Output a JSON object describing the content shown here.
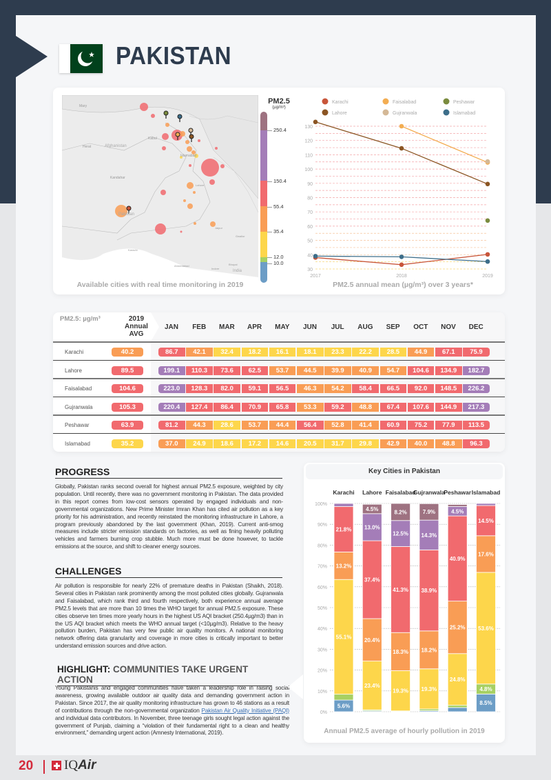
{
  "header": {
    "title": "PAKISTAN",
    "flag": "pakistan-flag"
  },
  "colors": {
    "good": "#6c9dc6",
    "moderate": "#a7d063",
    "usg_low": "#fdd64b",
    "usg": "#f99d55",
    "unhealthy": "#f16a6e",
    "very_unhealthy": "#a47db8",
    "hazardous": "#9e7281",
    "dark": "#2e3c4e",
    "accent": "#d42a3b"
  },
  "map": {
    "caption": "Available cities with real time monitoring in 2019",
    "labels": [
      "Mary",
      "Herat",
      "Afghanistan",
      "Kabul",
      "Kandahar",
      "Islamabad",
      "Pakistan",
      "Lahore",
      "Karachi",
      "Jaipur",
      "Gwalior",
      "Ahmedabad",
      "Indore",
      "Bhopal",
      "India"
    ],
    "legend": {
      "title": "PM2.5",
      "unit": "(µg/m³)",
      "ticks": [
        "250.4",
        "150.4",
        "55.4",
        "35.4",
        "12.0",
        "10.0"
      ]
    }
  },
  "chart_data": [
    {
      "type": "line",
      "title": "PM2.5 annual mean (µg/m³) over 3 years*",
      "x": [
        "2017",
        "2018",
        "2019"
      ],
      "ylim": [
        30,
        130
      ],
      "yticks": [
        "130",
        "120",
        "110",
        "100",
        "90",
        "80",
        "70",
        "60",
        "50",
        "40",
        "30"
      ],
      "legend": [
        "Karachi",
        "Lahore",
        "Faisalabad",
        "Gujranwala",
        "Peshawar",
        "Islamabad"
      ],
      "legend_position": "top",
      "series": [
        {
          "name": "Karachi",
          "color": "#c8553a",
          "values": [
            38,
            33,
            40.2
          ]
        },
        {
          "name": "Lahore",
          "color": "#8b5523",
          "values": [
            133,
            114.5,
            89.5
          ]
        },
        {
          "name": "Faisalabad",
          "color": "#f3ad52",
          "values": [
            null,
            130,
            104.6
          ]
        },
        {
          "name": "Gujranwala",
          "color": "#d4b896",
          "values": [
            null,
            null,
            105.3
          ]
        },
        {
          "name": "Peshawar",
          "color": "#7a8b3e",
          "values": [
            null,
            null,
            63.9
          ]
        },
        {
          "name": "Islamabad",
          "color": "#3d6e8a",
          "values": [
            39,
            38.5,
            35.2
          ]
        }
      ]
    },
    {
      "type": "table",
      "title": "PM2.5: µg/m³",
      "avg_header": [
        "2019",
        "Annual",
        "AVG"
      ],
      "months": [
        "JAN",
        "FEB",
        "MAR",
        "APR",
        "MAY",
        "JUN",
        "JUL",
        "AUG",
        "SEP",
        "OCT",
        "NOV",
        "DEC"
      ],
      "rows": [
        {
          "city": "Karachi",
          "avg": "40.2",
          "values": [
            "86.7",
            "42.1",
            "32.4",
            "18.2",
            "16.1",
            "18.1",
            "23.3",
            "22.2",
            "28.5",
            "44.9",
            "67.1",
            "75.9"
          ]
        },
        {
          "city": "Lahore",
          "avg": "89.5",
          "values": [
            "199.1",
            "110.3",
            "73.6",
            "62.5",
            "53.7",
            "44.5",
            "39.9",
            "40.9",
            "54.7",
            "104.6",
            "134.9",
            "182.7"
          ]
        },
        {
          "city": "Faisalabad",
          "avg": "104.6",
          "values": [
            "223.0",
            "128.3",
            "82.0",
            "59.1",
            "56.5",
            "46.3",
            "54.2",
            "58.4",
            "66.5",
            "92.0",
            "148.5",
            "226.2"
          ]
        },
        {
          "city": "Gujranwala",
          "avg": "105.3",
          "values": [
            "220.4",
            "127.4",
            "86.4",
            "70.9",
            "65.8",
            "53.3",
            "59.2",
            "48.8",
            "67.4",
            "107.6",
            "144.9",
            "217.3"
          ]
        },
        {
          "city": "Peshawar",
          "avg": "63.9",
          "values": [
            "81.2",
            "44.3",
            "28.6",
            "53.7",
            "44.4",
            "56.4",
            "52.8",
            "41.4",
            "60.9",
            "75.2",
            "77.9",
            "113.5"
          ]
        },
        {
          "city": "Islamabad",
          "avg": "35.2",
          "values": [
            "37.0",
            "24.9",
            "18.6",
            "17.2",
            "14.6",
            "20.5",
            "31.7",
            "29.8",
            "42.9",
            "40.0",
            "48.8",
            "96.3"
          ]
        }
      ]
    },
    {
      "type": "bar",
      "stacked": true,
      "title": "Key Cities in Pakistan",
      "caption": "Annual PM2.5 average of hourly pollution in 2019",
      "categories": [
        "Karachi",
        "Lahore",
        "Faisalabad",
        "Gujranwala",
        "Peshawar",
        "Islamabad"
      ],
      "ylim": [
        0,
        100
      ],
      "yticks": [
        "0%",
        "10%",
        "20%",
        "30%",
        "40%",
        "50%",
        "60%",
        "70%",
        "80%",
        "90%",
        "100%"
      ],
      "series": [
        {
          "name": "0-10",
          "color": "#6c9dc6",
          "values": [
            5.6,
            0.4,
            0.1,
            0.5,
            2.0,
            8.5
          ],
          "labels": [
            "5.6%",
            "",
            "",
            "",
            "",
            "8.5%"
          ]
        },
        {
          "name": "10-12",
          "color": "#a7d063",
          "values": [
            2.8,
            0.5,
            0.3,
            0.8,
            1.1,
            4.8
          ],
          "labels": [
            "",
            "",
            "",
            "",
            "",
            "4.8%"
          ]
        },
        {
          "name": "12-35.4",
          "color": "#fdd64b",
          "values": [
            55.1,
            23.4,
            19.3,
            19.3,
            24.8,
            53.6
          ],
          "labels": [
            "55.1%",
            "23.4%",
            "19.3%",
            "19.3%",
            "24.8%",
            "53.6%"
          ]
        },
        {
          "name": "35.4-55.4",
          "color": "#f99d55",
          "values": [
            13.2,
            20.4,
            18.3,
            18.2,
            25.2,
            17.6
          ],
          "labels": [
            "13.2%",
            "20.4%",
            "18.3%",
            "18.2%",
            "25.2%",
            "17.6%"
          ]
        },
        {
          "name": "55.4-150.4",
          "color": "#f16a6e",
          "values": [
            21.8,
            37.4,
            41.3,
            38.9,
            40.9,
            14.5
          ],
          "labels": [
            "21.8%",
            "37.4%",
            "41.3%",
            "38.9%",
            "40.9%",
            "14.5%"
          ]
        },
        {
          "name": "150.4-250.4",
          "color": "#a47db8",
          "values": [
            1.5,
            13.0,
            12.5,
            14.3,
            4.5,
            1.0
          ],
          "labels": [
            "",
            "13.0%",
            "12.5%",
            "14.3%",
            "4.5%",
            ""
          ]
        },
        {
          "name": "250.4+",
          "color": "#9e7281",
          "values": [
            0,
            4.5,
            8.2,
            7.9,
            1.0,
            0
          ],
          "labels": [
            "",
            "4.5%",
            "8.2%",
            "7.9%",
            "",
            ""
          ]
        }
      ]
    }
  ],
  "sections": {
    "progress": {
      "heading": "PROGRESS",
      "body": "Globally, Pakistan ranks second overall for highest annual PM2.5 exposure, weighted by city population. Until recently, there was no government monitoring in Pakistan. The data provided in this report comes from low-cost sensors operated  by engaged individuals and non-governmental organizations. New Prime Minister Imran Khan has cited air pollution as a key priority for his administration, and recently reinstated the monitoring infrastructure in Lahore, a program previously abandoned by the last government (Khan, 2019). Current anti-smog measures include stricter emission standards on factories, as well as fining heavily polluting vehicles and farmers burning crop stubble. Much more must be done however, to tackle emissions at the source, and shift to cleaner energy sources."
    },
    "challenges": {
      "heading": "CHALLENGES",
      "body": "Air pollution is responsible for nearly 22% of premature deaths in Pakistan (Shaikh, 2018). Several cities in Pakistan rank prominently among the most polluted cities globally. Gujranwala and Faisalabad, which rank third and fourth respectively, both experience annual average PM2.5 levels that are more than 10 times the WHO target for annual PM2.5 exposure. These cities observe ten times more yearly hours in the highest US AQI bracket (250.4µg/m3) than in the US AQI bracket which meets the WHO annual target (<10µg/m3). Relative to the heavy pollution burden, Pakistan has very few public air quality monitors. A national monitoring network offering data granularity and coverage in more cities is critically important to better understand emission sources and drive action."
    },
    "highlight": {
      "heading_prefix": "HIGHLIGHT:",
      "heading_sub": " COMMUNITIES TAKE URGENT ACTION",
      "body_1": "Young Pakistanis and engaged communities have taken a leadership role in raising social awareness, growing available outdoor air quality data and demanding government action in Pakistan. Since 2017, the air quality monitoring infrastructure has grown to 46 stations as a result of contributions through the non-governmental organization ",
      "link": "Pakistan Air Quality Initiative (PAQI)",
      "body_2": " and individual data contributors. In November, three teenage girls sought legal action against the government of Punjab, claiming a “violation of their fundamental right to a clean and healthy environment,” demanding urgent action (Amnesty International, 2019)."
    }
  },
  "footer": {
    "page_number": "20",
    "brand_prefix": "IQ",
    "brand_suffix": "Air"
  }
}
